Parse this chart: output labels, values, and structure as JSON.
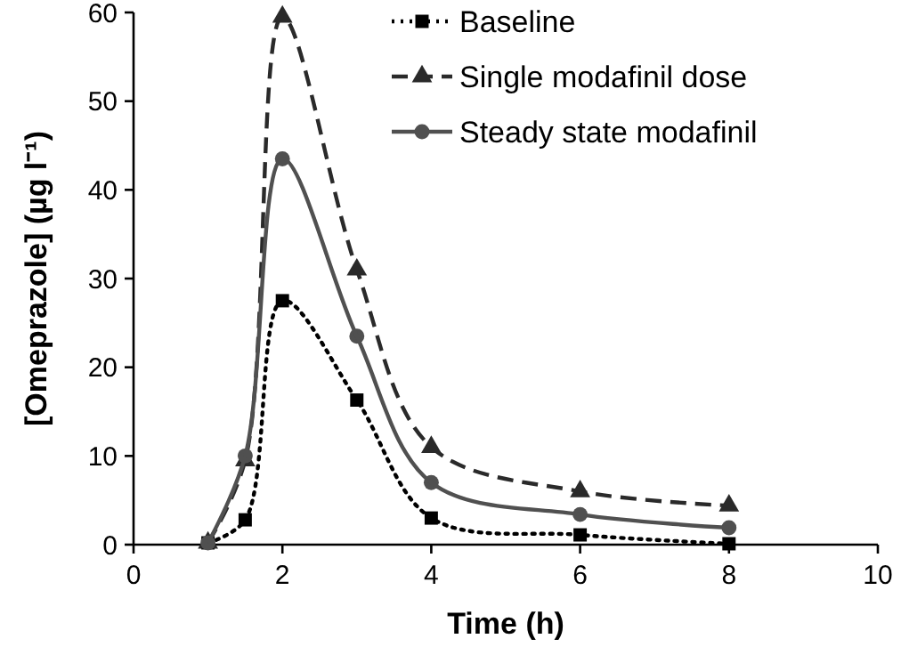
{
  "chart_data": {
    "type": "line",
    "xlabel": "Time (h)",
    "ylabel": "[Omeprazole] (µg l⁻¹)",
    "xlim": [
      0,
      10
    ],
    "xticks": [
      0,
      2,
      4,
      6,
      8,
      10
    ],
    "ylim": [
      0,
      60
    ],
    "yticks": [
      0,
      10,
      20,
      30,
      40,
      50,
      60
    ],
    "x": [
      1,
      1.5,
      2,
      3,
      4,
      6,
      8
    ],
    "grid": false,
    "legend": "top right",
    "series": [
      {
        "name": "Baseline",
        "color": "#000000",
        "marker": "square",
        "line_style": "dotted",
        "values": [
          0.2,
          2.8,
          27.5,
          16.3,
          3.0,
          1.1,
          0.1
        ]
      },
      {
        "name": "Single modafinil dose",
        "color": "#2a2a2a",
        "marker": "triangle",
        "line_style": "dashed",
        "values": [
          0.2,
          9.5,
          59.5,
          31,
          11,
          6,
          4.4
        ]
      },
      {
        "name": "Steady state modafinil",
        "color": "#505050",
        "marker": "circle",
        "line_style": "solid",
        "values": [
          0.2,
          10,
          43.5,
          23.5,
          7,
          3.4,
          1.9
        ]
      }
    ]
  }
}
